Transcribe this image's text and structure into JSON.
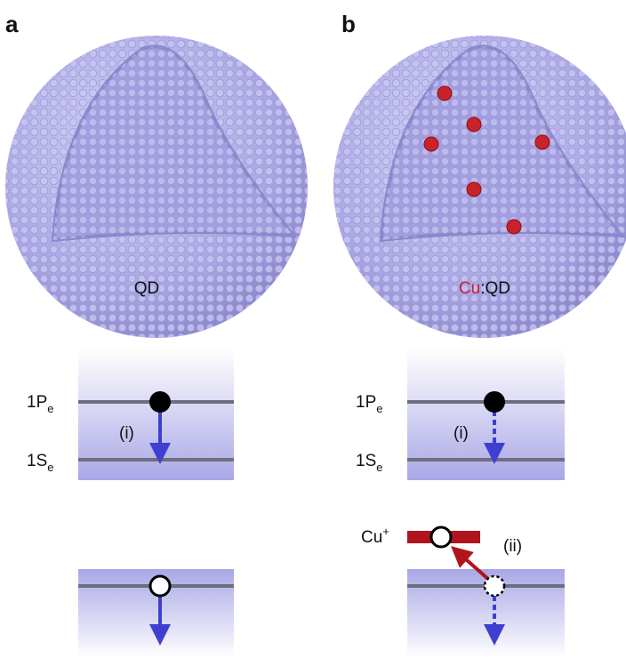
{
  "panels": {
    "a": {
      "label": "a",
      "sphere_label": "QD",
      "level_upper": {
        "main": "1P",
        "sub": "e"
      },
      "level_lower": {
        "main": "1S",
        "sub": "e"
      },
      "transition": "(i)"
    },
    "b": {
      "label": "b",
      "sphere_label": {
        "dopant": "Cu",
        "rest": ":QD"
      },
      "level_upper": {
        "main": "1P",
        "sub": "e"
      },
      "level_lower": {
        "main": "1S",
        "sub": "e"
      },
      "transition": "(i)",
      "dopant_level": {
        "main": "Cu",
        "sup": "+"
      },
      "dopant_transition": "(ii)"
    }
  }
}
